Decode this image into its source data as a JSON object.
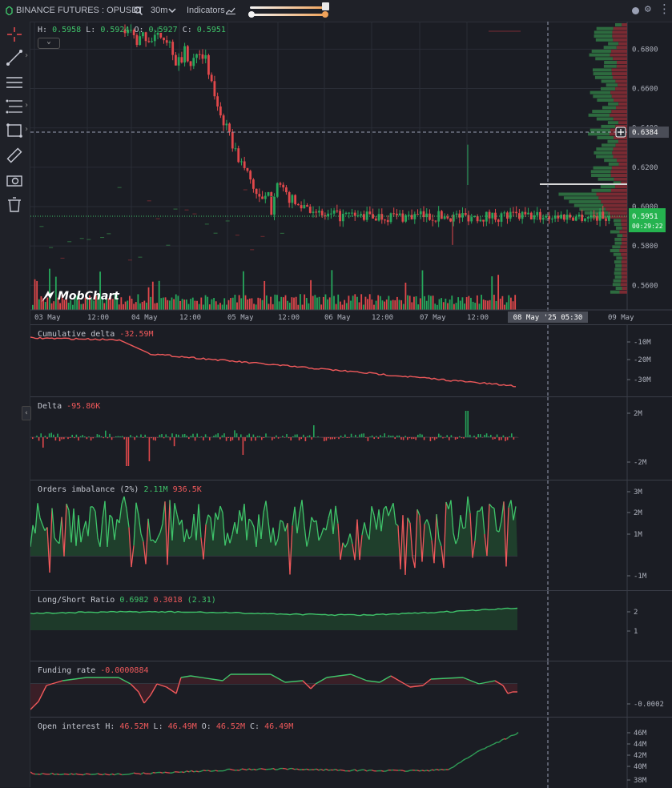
{
  "topbar": {
    "title": "BINANCE FUTURES : OPUSDT",
    "interval": "30m",
    "indicators": "Indicators"
  },
  "ohlc": {
    "h_label": "H:",
    "h": "0.5958",
    "l_label": "L:",
    "l": "0.5924",
    "o_label": "O:",
    "o": "0.5927",
    "c_label": "C:",
    "c": "0.5951"
  },
  "price_axis": [
    "0.6800",
    "0.6600",
    "0.6400",
    "0.6200",
    "0.6000",
    "0.5800",
    "0.5600"
  ],
  "crosshair_price": "0.6384",
  "last_price": "0.5951",
  "countdown": "00:29:22",
  "time_axis": [
    "03 May",
    "12:00",
    "04 May",
    "12:00",
    "05 May",
    "12:00",
    "06 May",
    "12:00",
    "07 May",
    "12:00",
    "09 May"
  ],
  "crosshair_time": "08 May '25  05:30",
  "watermark": "MobChart",
  "colors": {
    "up": "#26a65b",
    "down": "#e0484b",
    "accent": "#3fc46a"
  },
  "panels": {
    "cum_delta": {
      "label": "Cumulative delta",
      "value": "-32.59M",
      "axis": [
        "-10M",
        "-20M",
        "-30M"
      ]
    },
    "delta": {
      "label": "Delta",
      "value": "-95.86K",
      "axis": [
        "2M",
        "-2M"
      ]
    },
    "orders": {
      "label": "Orders imbalance (2%)",
      "v1": "2.11M",
      "v2": "936.5K",
      "axis": [
        "3M",
        "2M",
        "1M",
        "-1M"
      ]
    },
    "lsr": {
      "label": "Long/Short Ratio",
      "v1": "0.6982",
      "v2": "0.3018",
      "v3": "(2.31)",
      "axis": [
        "2",
        "1"
      ]
    },
    "funding": {
      "label": "Funding rate",
      "value": "-0.0000884",
      "axis": [
        "-0.0002"
      ]
    },
    "oi": {
      "label": "Open interest",
      "h_label": "H:",
      "h": "46.52M",
      "l_label": "L:",
      "l": "46.49M",
      "o_label": "O:",
      "o": "46.52M",
      "c_label": "C:",
      "c": "46.49M",
      "axis": [
        "46M",
        "44M",
        "42M",
        "40M",
        "38M"
      ]
    }
  }
}
